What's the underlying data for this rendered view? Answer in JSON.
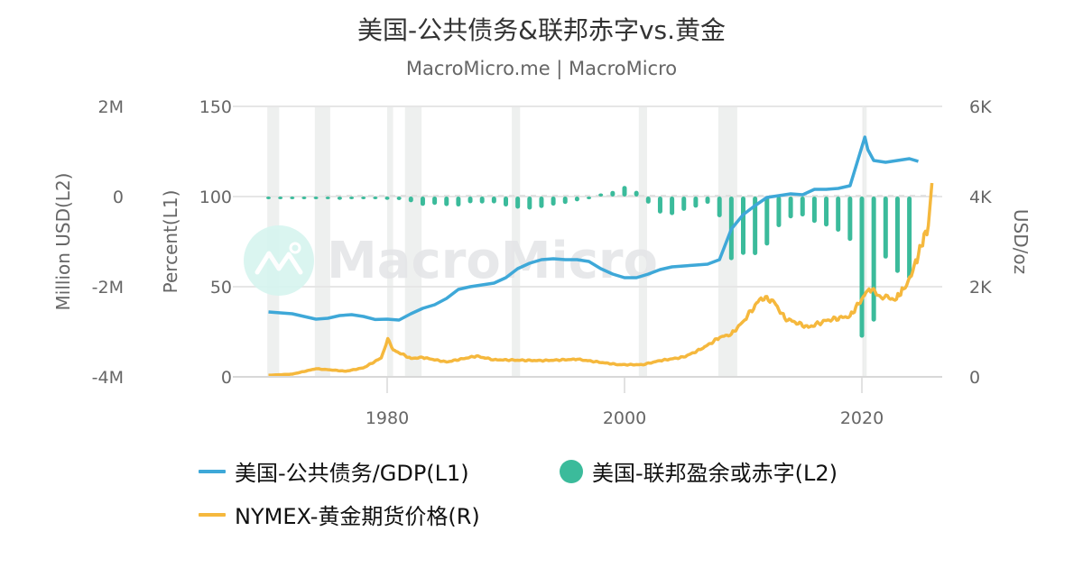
{
  "title": "美国-公共债务&联邦赤字vs.黄金",
  "subtitle": "MacroMicro.me | MacroMicro",
  "watermark": "MacroMicro",
  "colors": {
    "debt_gdp": "#3ea8d8",
    "deficit": "#3bbb9b",
    "gold": "#f5b83d",
    "grid": "#e6e6e6",
    "recession": "#eef0ef"
  },
  "axes": {
    "l2_title": "Million USD(L2)",
    "l1_title": "Percent(L1)",
    "r_title": "USD/oz",
    "l2_ticks": [
      "2M",
      "0",
      "-2M",
      "-4M"
    ],
    "l1_ticks": [
      "150",
      "100",
      "50",
      "0"
    ],
    "r_ticks": [
      "6K",
      "4K",
      "2K",
      "0"
    ],
    "x_ticks": [
      "1980",
      "2000",
      "2020"
    ]
  },
  "legend": {
    "items": [
      {
        "label": "美国-公共债务/GDP(L1)",
        "marker": "line",
        "color": "#3ea8d8"
      },
      {
        "label": "美国-联邦盈余或赤字(L2)",
        "marker": "dot",
        "color": "#3bbb9b"
      },
      {
        "label": "NYMEX-黄金期货价格(R)",
        "marker": "line",
        "color": "#f5b83d"
      }
    ]
  },
  "chart_data": {
    "type": "line",
    "title": "美国-公共债务&联邦赤字vs.黄金",
    "subtitle": "MacroMicro.me | MacroMicro",
    "xlabel": "",
    "x_range": [
      1969.6,
      2026.5
    ],
    "x_ticks": [
      1980,
      2000,
      2020
    ],
    "grid": true,
    "legend_position": "bottom",
    "recession_bands": [
      [
        1969.9,
        1970.9
      ],
      [
        1973.9,
        1975.2
      ],
      [
        1980.0,
        1980.5
      ],
      [
        1981.5,
        1982.9
      ],
      [
        1990.5,
        1991.2
      ],
      [
        2001.2,
        2001.9
      ],
      [
        2007.9,
        2009.5
      ],
      [
        2020.1,
        2020.4
      ]
    ],
    "axes": {
      "L1": {
        "label": "Percent(L1)",
        "range": [
          0,
          150
        ],
        "ticks": [
          0,
          50,
          100,
          150
        ]
      },
      "L2": {
        "label": "Million USD(L2)",
        "range": [
          -4000000,
          2000000
        ],
        "ticks": [
          "-4M",
          "-2M",
          "0",
          "2M"
        ]
      },
      "R": {
        "label": "USD/oz",
        "range": [
          0,
          6000
        ],
        "ticks": [
          "0",
          "2K",
          "4K",
          "6K"
        ]
      }
    },
    "series": [
      {
        "name": "美国-公共债务/GDP(L1)",
        "type": "line",
        "axis": "L1",
        "color": "#3ea8d8",
        "x": [
          1970,
          1971,
          1972,
          1973,
          1974,
          1975,
          1976,
          1977,
          1978,
          1979,
          1980,
          1981,
          1982,
          1983,
          1984,
          1985,
          1986,
          1987,
          1988,
          1989,
          1990,
          1991,
          1992,
          1993,
          1994,
          1995,
          1996,
          1997,
          1998,
          1999,
          2000,
          2001,
          2002,
          2003,
          2004,
          2005,
          2006,
          2007,
          2008,
          2009,
          2010,
          2011,
          2012,
          2013,
          2014,
          2015,
          2016,
          2017,
          2018,
          2019,
          2020.25,
          2020.5,
          2021,
          2022,
          2023,
          2024,
          2024.75
        ],
        "values": [
          36,
          35.5,
          35,
          33.5,
          32,
          32.5,
          34,
          34.5,
          33.5,
          31.8,
          32,
          31.5,
          35,
          38,
          40,
          43.5,
          48.5,
          50,
          51,
          52,
          55,
          60,
          63,
          65,
          65.5,
          65,
          65,
          64,
          60,
          57,
          55,
          55,
          57,
          59.5,
          61,
          61.5,
          62,
          62.5,
          65,
          82,
          90,
          95,
          99.5,
          100.5,
          101.5,
          101,
          104,
          104,
          104.5,
          106,
          133,
          126,
          120,
          119,
          120,
          121,
          119.5
        ]
      },
      {
        "name": "美国-联邦盈余或赤字(L2)",
        "type": "bar",
        "axis": "L2",
        "unit": "Million USD",
        "color": "#3bbb9b",
        "x": [
          1970,
          1971,
          1972,
          1973,
          1974,
          1975,
          1976,
          1977,
          1978,
          1979,
          1980,
          1981,
          1982,
          1983,
          1984,
          1985,
          1986,
          1987,
          1988,
          1989,
          1990,
          1991,
          1992,
          1993,
          1994,
          1995,
          1996,
          1997,
          1998,
          1999,
          2000,
          2001,
          2002,
          2003,
          2004,
          2005,
          2006,
          2007,
          2008,
          2009,
          2010,
          2011,
          2012,
          2013,
          2014,
          2015,
          2016,
          2017,
          2018,
          2019,
          2020,
          2021,
          2022,
          2023,
          2024
        ],
        "values": [
          -3000,
          -23000,
          -23000,
          -15000,
          -6000,
          -53000,
          -74000,
          -54000,
          -59000,
          -41000,
          -74000,
          -79000,
          -128000,
          -208000,
          -185000,
          -212000,
          -221000,
          -150000,
          -155000,
          -153000,
          -221000,
          -269000,
          -290000,
          -255000,
          -203000,
          -164000,
          -107000,
          -22000,
          69000,
          126000,
          236000,
          128000,
          -158000,
          -378000,
          -413000,
          -318000,
          -248000,
          -161000,
          -459000,
          -1413000,
          -1294000,
          -1300000,
          -1087000,
          -680000,
          -485000,
          -442000,
          -585000,
          -665000,
          -779000,
          -984000,
          -3132000,
          -2775000,
          -1376000,
          -1695000,
          -1833000
        ]
      },
      {
        "name": "NYMEX-黄金期货价格(R)",
        "type": "line",
        "axis": "R",
        "unit": "USD/oz",
        "color": "#f5b83d",
        "x": [
          1970,
          1972,
          1974,
          1975,
          1976.5,
          1978,
          1979.5,
          1980.05,
          1980.5,
          1982,
          1983,
          1985,
          1987.5,
          1989,
          1993,
          1996,
          1999.5,
          2001.5,
          2003,
          2005,
          2006.5,
          2008,
          2009,
          2010,
          2011.5,
          2012.5,
          2013.5,
          2015.5,
          2017,
          2019,
          2020.6,
          2021.5,
          2022.8,
          2023.5,
          2024.3,
          2025,
          2025.6,
          2025.9
        ],
        "values": [
          36,
          60,
          180,
          160,
          125,
          200,
          420,
          850,
          600,
          410,
          430,
          330,
          460,
          380,
          360,
          390,
          270,
          270,
          360,
          440,
          620,
          870,
          950,
          1230,
          1750,
          1700,
          1300,
          1100,
          1250,
          1350,
          1950,
          1800,
          1700,
          1950,
          2350,
          2900,
          3350,
          4300
        ]
      }
    ]
  }
}
